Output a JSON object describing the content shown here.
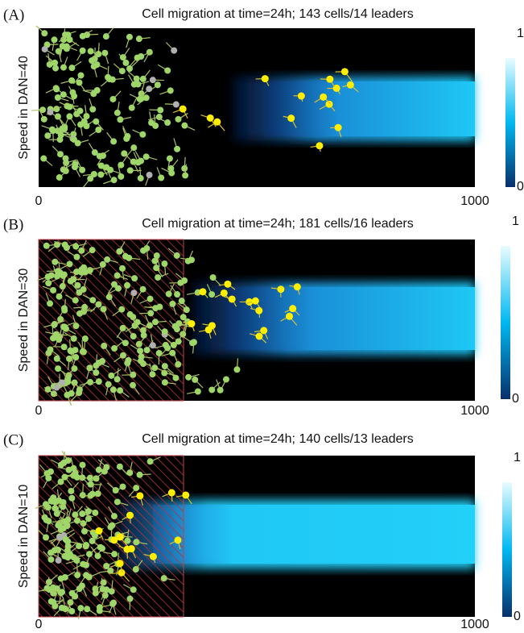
{
  "chart_data": [
    {
      "type": "heatmap",
      "panel_label": "(A)",
      "title": "Cell migration at time=24h; 143 cells/14 leaders",
      "ylabel": "Speed in DAN=40",
      "xlim": [
        0,
        1000
      ],
      "xticks": [
        0,
        1000
      ],
      "clim": [
        0,
        1
      ],
      "cticks": [
        0,
        1
      ],
      "hatched": false
    },
    {
      "type": "heatmap",
      "panel_label": "(B)",
      "title": "Cell migration at time=24h; 181 cells/16 leaders",
      "ylabel": "Speed in DAN=30",
      "xlim": [
        0,
        1000
      ],
      "xticks": [
        0,
        1000
      ],
      "clim": [
        0,
        1
      ],
      "cticks": [
        0,
        1
      ],
      "hatched": true
    },
    {
      "type": "heatmap",
      "panel_label": "(C)",
      "title": "Cell migration at time=24h; 140 cells/13 leaders",
      "ylabel": "Speed in DAN=10",
      "xlim": [
        0,
        1000
      ],
      "xticks": [
        0,
        1000
      ],
      "clim": [
        0,
        1
      ],
      "cticks": [
        0,
        1
      ],
      "hatched": true
    }
  ]
}
